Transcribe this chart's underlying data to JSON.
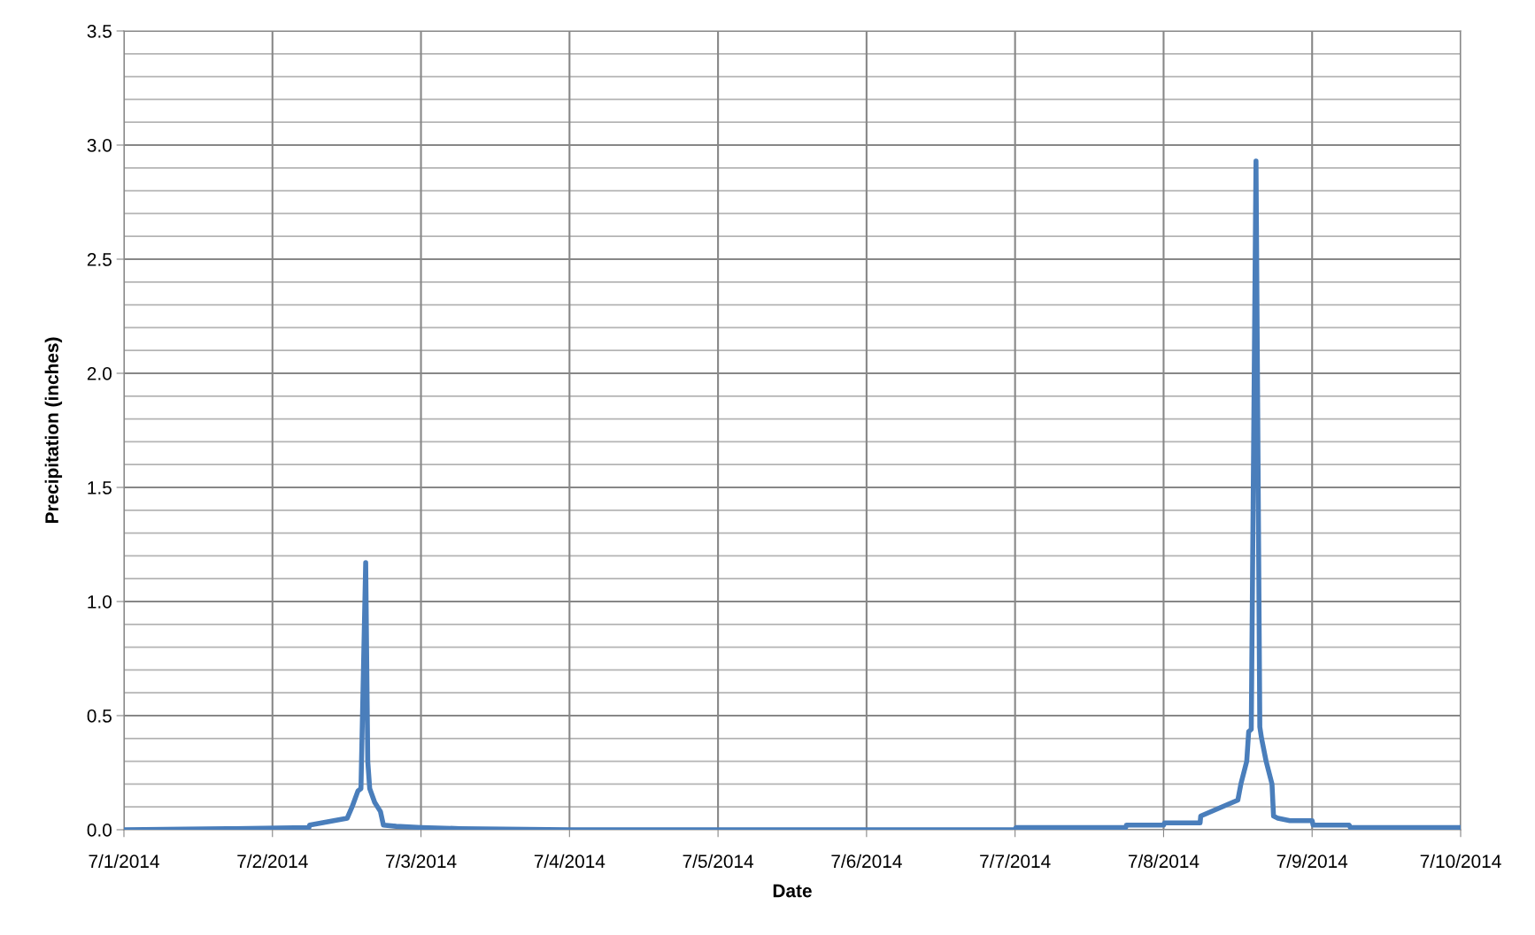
{
  "chart_data": {
    "type": "line",
    "xlabel": "Date",
    "ylabel": "Precipitation (inches)",
    "x": [
      "2014-07-01T00:00",
      "2014-07-01T18:00",
      "2014-07-02T05:54",
      "2014-07-02T06:00",
      "2014-07-02T12:04",
      "2014-07-02T12:52",
      "2014-07-02T13:49",
      "2014-07-02T14:18",
      "2014-07-02T15:04",
      "2014-07-02T15:24",
      "2014-07-02T15:43",
      "2014-07-02T16:31",
      "2014-07-02T17:27",
      "2014-07-02T17:56",
      "2014-07-02T20:00",
      "2014-07-03T00:00",
      "2014-07-03T06:14",
      "2014-07-04T00:00",
      "2014-07-07T00:00",
      "2014-07-07T00:10",
      "2014-07-07T17:53",
      "2014-07-07T18:00",
      "2014-07-08T00:00",
      "2014-07-08T00:10",
      "2014-07-08T05:54",
      "2014-07-08T06:00",
      "2014-07-08T12:00",
      "2014-07-08T12:29",
      "2014-07-08T13:26",
      "2014-07-08T13:45",
      "2014-07-08T14:10",
      "2014-07-08T14:56",
      "2014-07-08T15:33",
      "2014-07-08T15:50",
      "2014-07-08T16:34",
      "2014-07-08T17:31",
      "2014-07-08T17:46",
      "2014-07-08T18:29",
      "2014-07-08T20:24",
      "2014-07-09T00:00",
      "2014-07-09T00:10",
      "2014-07-09T06:00",
      "2014-07-09T06:10",
      "2014-07-10T00:00"
    ],
    "series": [
      {
        "color": "#4a7ebb",
        "values": [
          0.0,
          0.005,
          0.01,
          0.02,
          0.05,
          0.1,
          0.17,
          0.18,
          1.17,
          0.3,
          0.18,
          0.12,
          0.08,
          0.02,
          0.015,
          0.01,
          0.005,
          0.0,
          0.0,
          0.01,
          0.01,
          0.02,
          0.02,
          0.03,
          0.03,
          0.06,
          0.13,
          0.2,
          0.3,
          0.43,
          0.44,
          2.93,
          0.45,
          0.4,
          0.3,
          0.2,
          0.06,
          0.05,
          0.04,
          0.04,
          0.02,
          0.02,
          0.01,
          0.01
        ]
      }
    ],
    "xlim": [
      "2014-07-01",
      "2014-07-10"
    ],
    "xticks": [
      {
        "value": "2014-07-01",
        "label": "7/1/2014"
      },
      {
        "value": "2014-07-02",
        "label": "7/2/2014"
      },
      {
        "value": "2014-07-03",
        "label": "7/3/2014"
      },
      {
        "value": "2014-07-04",
        "label": "7/4/2014"
      },
      {
        "value": "2014-07-05",
        "label": "7/5/2014"
      },
      {
        "value": "2014-07-06",
        "label": "7/6/2014"
      },
      {
        "value": "2014-07-07",
        "label": "7/7/2014"
      },
      {
        "value": "2014-07-08",
        "label": "7/8/2014"
      },
      {
        "value": "2014-07-09",
        "label": "7/9/2014"
      },
      {
        "value": "2014-07-10",
        "label": "7/10/2014"
      }
    ],
    "ylim": [
      0,
      3.5
    ],
    "yticks": [
      {
        "value": 0,
        "label": "0.0"
      },
      {
        "value": 0.5,
        "label": "0.5"
      },
      {
        "value": 1,
        "label": "1.0"
      },
      {
        "value": 1.5,
        "label": "1.5"
      },
      {
        "value": 2,
        "label": "2.0"
      },
      {
        "value": 2.5,
        "label": "2.5"
      },
      {
        "value": 3,
        "label": "3.0"
      },
      {
        "value": 3.5,
        "label": "3.5"
      }
    ],
    "grid": true,
    "marker": "none",
    "line_style": "solid"
  }
}
